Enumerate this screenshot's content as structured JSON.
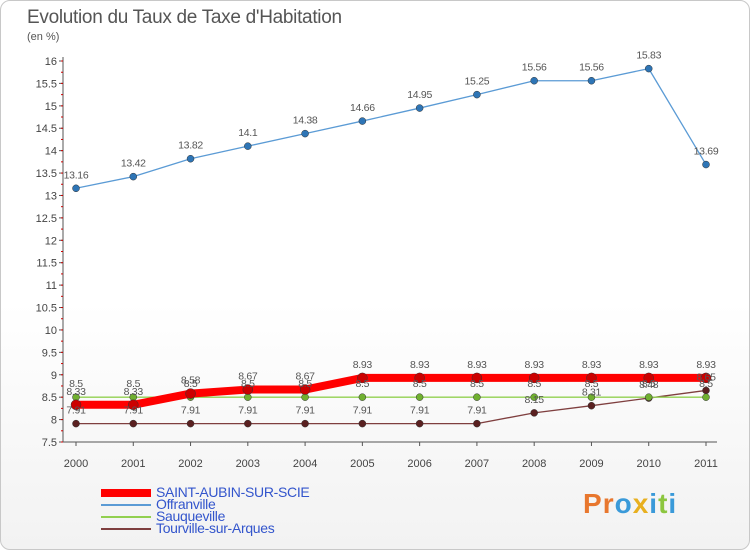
{
  "header": {
    "title": "Evolution du Taux de Taxe d'Habitation",
    "subtitle": "(en %)"
  },
  "brand": {
    "text": "Proxiti",
    "colors": [
      "#e8772e",
      "#e8772e",
      "#3a9ad9",
      "#e8b020",
      "#3a9ad9",
      "#8cc63f",
      "#3a9ad9"
    ]
  },
  "chart_data": {
    "type": "line",
    "x": [
      2000,
      2001,
      2002,
      2003,
      2004,
      2005,
      2006,
      2007,
      2008,
      2009,
      2010,
      2011
    ],
    "ylim": [
      7.5,
      16
    ],
    "yticks": [
      7.5,
      8,
      8.5,
      9,
      9.5,
      10,
      10.5,
      11,
      11.5,
      12,
      12.5,
      13,
      13.5,
      14,
      14.5,
      15,
      15.5,
      16
    ],
    "ytick_labels": [
      "7.5",
      "8",
      "8.5",
      "9",
      "9.5",
      "10",
      "10.5",
      "11",
      "11.5",
      "12",
      "12.5",
      "13",
      "13.5",
      "14",
      "14.5",
      "15",
      "15.5",
      "16"
    ],
    "grid": false,
    "legend": "bottom-left",
    "series": [
      {
        "name": "SAINT-AUBIN-SUR-SCIE",
        "color": "#ff0000",
        "marker_color": "#cc0000",
        "values": [
          8.33,
          8.33,
          8.58,
          8.67,
          8.67,
          8.93,
          8.93,
          8.93,
          8.93,
          8.93,
          8.93,
          8.93
        ],
        "labels": [
          "8.33",
          "8.33",
          "8.58",
          "8.67",
          "8.67",
          "8.93",
          "8.93",
          "8.93",
          "8.93",
          "8.93",
          "8.93",
          "8.93"
        ]
      },
      {
        "name": "Offranville",
        "color": "#5b9bd5",
        "marker_color": "#2e75b6",
        "values": [
          13.16,
          13.42,
          13.82,
          14.1,
          14.38,
          14.66,
          14.95,
          15.25,
          15.56,
          15.56,
          15.83,
          13.69
        ],
        "labels": [
          "13.16",
          "13.42",
          "13.82",
          "14.1",
          "14.38",
          "14.66",
          "14.95",
          "15.25",
          "15.56",
          "15.56",
          "15.83",
          "13.69"
        ]
      },
      {
        "name": "Sauqueville",
        "color": "#92d050",
        "marker_color": "#70b030",
        "values": [
          8.5,
          8.5,
          8.5,
          8.5,
          8.5,
          8.5,
          8.5,
          8.5,
          8.5,
          8.5,
          8.5,
          8.5
        ],
        "labels": [
          "8.5",
          "8.5",
          "8.5",
          "8.5",
          "8.5",
          "8.5",
          "8.5",
          "8.5",
          "8.5",
          "8.5",
          "8.5",
          "8.5"
        ]
      },
      {
        "name": "Tourville-sur-Arques",
        "color": "#7f3f3f",
        "marker_color": "#5a2020",
        "values": [
          7.91,
          7.91,
          7.91,
          7.91,
          7.91,
          7.91,
          7.91,
          7.91,
          8.15,
          8.31,
          8.48,
          8.65
        ],
        "labels": [
          "7.91",
          "7.91",
          "7.91",
          "7.91",
          "7.91",
          "7.91",
          "7.91",
          "7.91",
          "8.15",
          "8.31",
          "8.48",
          "8.65"
        ]
      }
    ]
  }
}
